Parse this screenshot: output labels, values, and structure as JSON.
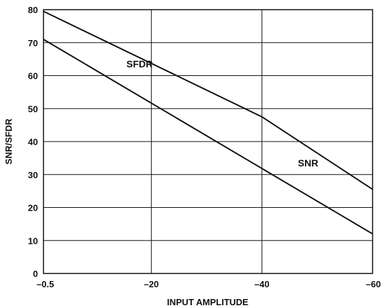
{
  "chart_data": {
    "type": "line",
    "title": "",
    "xlabel": "INPUT AMPLITUDE",
    "ylabel": "SNR/SFDR",
    "xlim": [
      -0.5,
      -60
    ],
    "ylim": [
      0,
      80
    ],
    "x_ticks": [
      "–0.5",
      "–20",
      "–40",
      "–60"
    ],
    "x_tick_values": [
      -0.5,
      -20,
      -40,
      -60
    ],
    "y_ticks": [
      "0",
      "10",
      "20",
      "30",
      "40",
      "50",
      "60",
      "70",
      "80"
    ],
    "y_tick_values": [
      0,
      10,
      20,
      30,
      40,
      50,
      60,
      70,
      80
    ],
    "grid": true,
    "series": [
      {
        "name": "SFDR",
        "x": [
          -0.5,
          -40,
          -60
        ],
        "y": [
          79.5,
          47.5,
          25.5
        ]
      },
      {
        "name": "SNR",
        "x": [
          -0.5,
          -60
        ],
        "y": [
          71,
          12
        ]
      }
    ]
  }
}
